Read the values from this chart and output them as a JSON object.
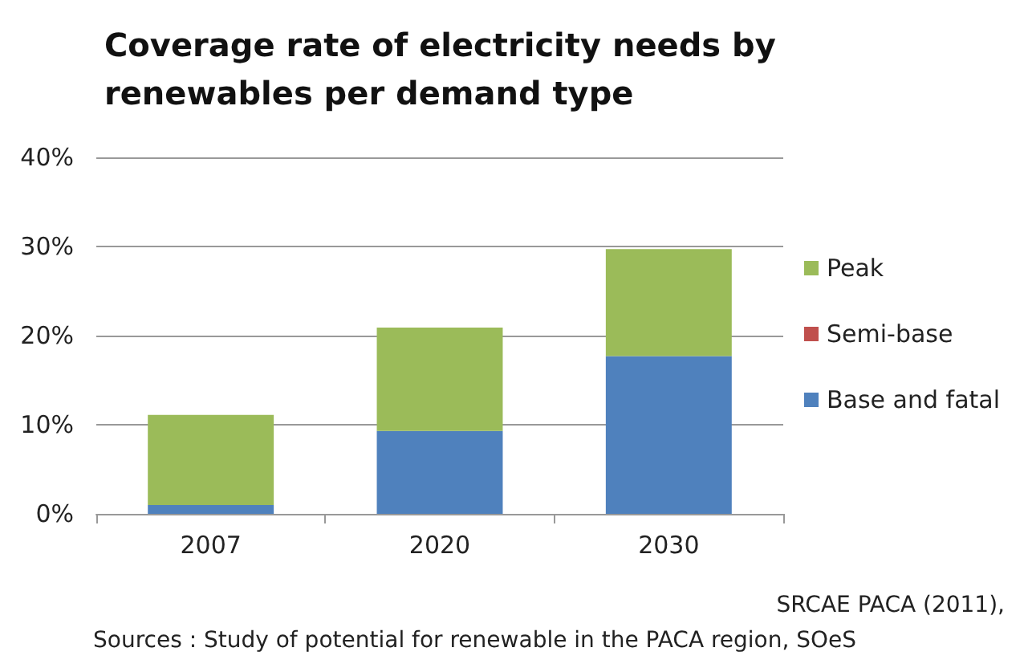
{
  "chart_data": {
    "type": "bar",
    "title": "Coverage rate of electricity needs by\nrenewables per demand type",
    "categories": [
      "2007",
      "2020",
      "2030"
    ],
    "stacked": true,
    "series": [
      {
        "name": "Base and fatal",
        "color": "#4f81bd",
        "values": [
          1.0,
          9.3,
          17.7
        ]
      },
      {
        "name": "Semi-base",
        "color": "#c0504d",
        "values": [
          0,
          0,
          0
        ]
      },
      {
        "name": "Peak",
        "color": "#9bbb59",
        "values": [
          10.1,
          11.6,
          12.0
        ]
      }
    ],
    "ylim": [
      0,
      40
    ],
    "yticks": [
      {
        "value": 0,
        "label": "0%"
      },
      {
        "value": 10,
        "label": "10%"
      },
      {
        "value": 20,
        "label": "20%"
      },
      {
        "value": 30,
        "label": "30%"
      },
      {
        "value": 40,
        "label": "40%"
      }
    ],
    "grid": "y",
    "legend": "right",
    "annotations": [
      "SRCAE PACA (2011),",
      "Sources : Study of potential for renewable in the PACA region, SOeS"
    ]
  }
}
